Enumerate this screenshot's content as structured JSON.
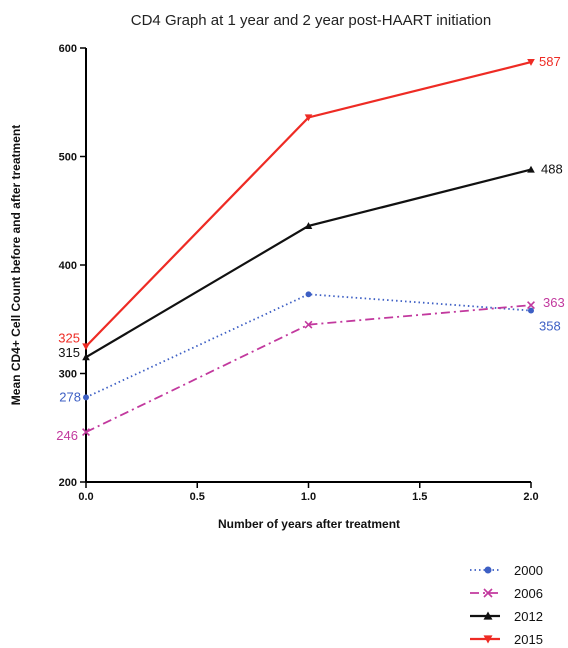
{
  "chart_data": {
    "type": "line",
    "title": "CD4 Graph at 1 year and 2 year post-HAART initiation",
    "xlabel": "Number of years after treatment",
    "ylabel": "Mean CD4+ Cell Count before and after treatment",
    "x": [
      0.0,
      1.0,
      2.0
    ],
    "xlim": [
      0.0,
      2.0
    ],
    "ylim": [
      200,
      600
    ],
    "x_ticks": [
      "0.0",
      "0.5",
      "1.0",
      "1.5",
      "2.0"
    ],
    "y_ticks": [
      "200",
      "300",
      "400",
      "500",
      "600"
    ],
    "legend_position": "bottom-right",
    "series": [
      {
        "name": "2000",
        "values": [
          278,
          373,
          358
        ],
        "color": "#3d5fc4",
        "line": "dotted",
        "marker": "circle",
        "labels": [
          "278",
          "",
          "358"
        ]
      },
      {
        "name": "2006",
        "values": [
          246,
          345,
          363
        ],
        "color": "#c2399e",
        "line": "dash-dot",
        "marker": "x",
        "labels": [
          "246",
          "",
          "363"
        ]
      },
      {
        "name": "2012",
        "values": [
          315,
          436,
          488
        ],
        "color": "#111111",
        "line": "solid",
        "marker": "triangle-up",
        "labels": [
          "315",
          "",
          "488"
        ]
      },
      {
        "name": "2015",
        "values": [
          325,
          536,
          587
        ],
        "color": "#ee2b24",
        "line": "solid",
        "marker": "triangle-down",
        "labels": [
          "325",
          "",
          "587"
        ]
      }
    ]
  }
}
